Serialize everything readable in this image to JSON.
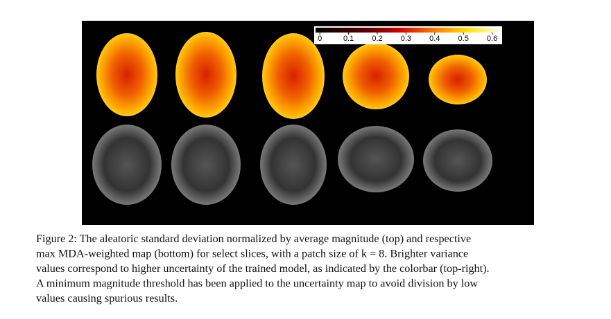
{
  "figure": {
    "colorbar": {
      "ticks": [
        0,
        0.1,
        0.2,
        0.3,
        0.4,
        0.5,
        0.6
      ],
      "lim": [
        -0.015,
        0.63
      ]
    },
    "caption": [
      "Figure 2: The aleatoric standard deviation normalized by average magnitude (top) and respective",
      "max MDA-weighted map (bottom) for select slices, with a patch size of k = 8. Brighter variance",
      "values correspond to higher uncertainty of the trained model, as indicated by the colorbar (top-right).",
      "A minimum magnitude threshold has been applied to the uncertainty map to avoid division by low",
      "values causing spurious results."
    ]
  }
}
